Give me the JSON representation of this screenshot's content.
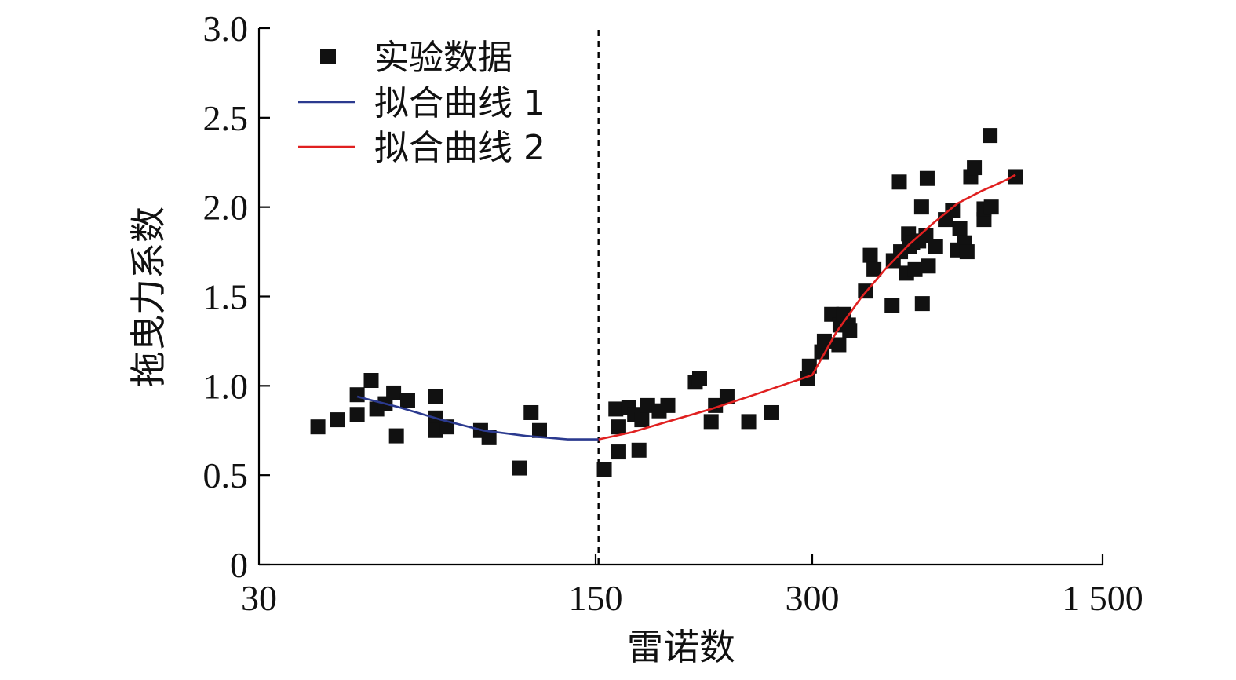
{
  "chart_data": {
    "type": "scatter",
    "xlabel": "雷诺数",
    "ylabel": "拖曳力系数",
    "x_scale": "piecewise-linear: 30–150, 150–300, 300–1500",
    "x_ticks": [
      30,
      150,
      300,
      1500
    ],
    "x_tick_labels": [
      "30",
      "150",
      "300",
      "1 500"
    ],
    "ylim": [
      0,
      3.0
    ],
    "y_ticks": [
      0,
      0.5,
      1.0,
      1.5,
      2.0,
      2.5,
      3.0
    ],
    "y_tick_labels": [
      "0",
      "0.5",
      "1.0",
      "1.5",
      "2.0",
      "2.5",
      "3.0"
    ],
    "grid": false,
    "legend_position": "top-left",
    "divider_x": 152,
    "series": [
      {
        "name": "实验数据",
        "kind": "markers",
        "color": "#111111",
        "points": [
          [
            51,
            0.77
          ],
          [
            58,
            0.81
          ],
          [
            65,
            0.84
          ],
          [
            65,
            0.95
          ],
          [
            70,
            1.03
          ],
          [
            72,
            0.87
          ],
          [
            75,
            0.9
          ],
          [
            78,
            0.96
          ],
          [
            79,
            0.72
          ],
          [
            83,
            0.92
          ],
          [
            93,
            0.94
          ],
          [
            93,
            0.82
          ],
          [
            93,
            0.75
          ],
          [
            97,
            0.77
          ],
          [
            109,
            0.75
          ],
          [
            112,
            0.71
          ],
          [
            123,
            0.54
          ],
          [
            127,
            0.85
          ],
          [
            130,
            0.75
          ],
          [
            156,
            0.53
          ],
          [
            164,
            0.87
          ],
          [
            166,
            0.77
          ],
          [
            166,
            0.63
          ],
          [
            173,
            0.88
          ],
          [
            177,
            0.84
          ],
          [
            180,
            0.64
          ],
          [
            182,
            0.81
          ],
          [
            186,
            0.89
          ],
          [
            194,
            0.86
          ],
          [
            200,
            0.89
          ],
          [
            219,
            1.02
          ],
          [
            222,
            1.04
          ],
          [
            230,
            0.8
          ],
          [
            233,
            0.89
          ],
          [
            241,
            0.94
          ],
          [
            256,
            0.8
          ],
          [
            272,
            0.85
          ],
          [
            297,
            1.04
          ],
          [
            298,
            1.11
          ],
          [
            339,
            1.19
          ],
          [
            350,
            1.25
          ],
          [
            380,
            1.4
          ],
          [
            410,
            1.23
          ],
          [
            415,
            1.34
          ],
          [
            430,
            1.4
          ],
          [
            450,
            1.34
          ],
          [
            455,
            1.31
          ],
          [
            520,
            1.53
          ],
          [
            540,
            1.73
          ],
          [
            555,
            1.65
          ],
          [
            630,
            1.45
          ],
          [
            635,
            1.7
          ],
          [
            660,
            2.14
          ],
          [
            665,
            1.75
          ],
          [
            690,
            1.63
          ],
          [
            698,
            1.85
          ],
          [
            703,
            1.78
          ],
          [
            715,
            1.8
          ],
          [
            725,
            1.65
          ],
          [
            740,
            1.81
          ],
          [
            752,
            2.0
          ],
          [
            755,
            1.46
          ],
          [
            770,
            1.84
          ],
          [
            775,
            2.16
          ],
          [
            780,
            1.67
          ],
          [
            810,
            1.78
          ],
          [
            850,
            1.93
          ],
          [
            880,
            1.98
          ],
          [
            900,
            1.76
          ],
          [
            910,
            1.88
          ],
          [
            930,
            1.8
          ],
          [
            940,
            1.75
          ],
          [
            955,
            2.17
          ],
          [
            970,
            2.22
          ],
          [
            1010,
            1.93
          ],
          [
            1010,
            1.99
          ],
          [
            1035,
            2.4
          ],
          [
            1040,
            2.0
          ],
          [
            1140,
            2.17
          ]
        ]
      },
      {
        "name": "拟合曲线 1",
        "kind": "line",
        "color": "#2b3a8f",
        "points": [
          [
            65,
            0.94
          ],
          [
            80,
            0.88
          ],
          [
            95,
            0.81
          ],
          [
            110,
            0.75
          ],
          [
            125,
            0.72
          ],
          [
            140,
            0.7
          ],
          [
            152,
            0.7
          ]
        ]
      },
      {
        "name": "拟合曲线 2",
        "kind": "line",
        "color": "#e02020",
        "points": [
          [
            152,
            0.7
          ],
          [
            175,
            0.74
          ],
          [
            200,
            0.8
          ],
          [
            230,
            0.87
          ],
          [
            260,
            0.95
          ],
          [
            300,
            1.06
          ],
          [
            400,
            1.3
          ],
          [
            500,
            1.49
          ],
          [
            600,
            1.65
          ],
          [
            700,
            1.79
          ],
          [
            800,
            1.91
          ],
          [
            900,
            2.02
          ],
          [
            1000,
            2.09
          ],
          [
            1100,
            2.15
          ],
          [
            1140,
            2.18
          ]
        ]
      }
    ]
  }
}
